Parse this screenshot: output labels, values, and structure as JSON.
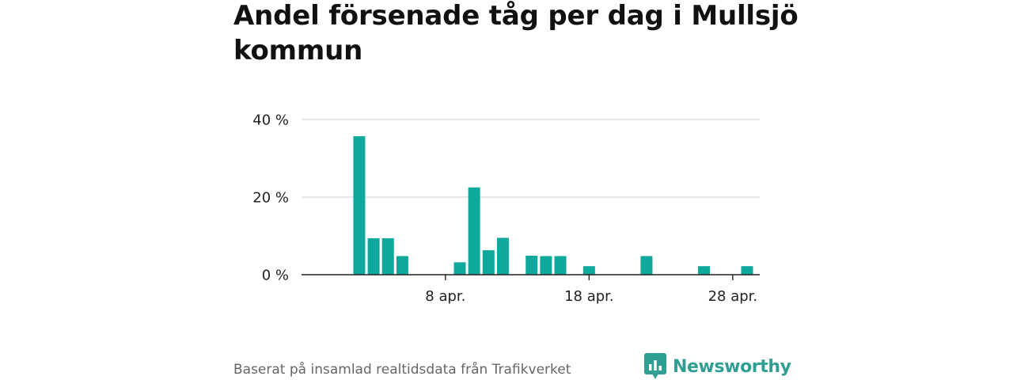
{
  "title": "Andel försenade tåg per dag i Mullsjö kommun",
  "source": "Baserat på insamlad realtidsdata från Trafikverket",
  "brand": {
    "name": "Newsworthy",
    "color": "#2f9f94"
  },
  "chart_data": {
    "type": "bar",
    "title": "Andel försenade tåg per dag i Mullsjö kommun",
    "xlabel": "",
    "ylabel": "",
    "color": "#0fa89d",
    "categories": [
      "30 mar.",
      "31 mar.",
      "1 apr.",
      "2 apr.",
      "3 apr.",
      "4 apr.",
      "5 apr.",
      "6 apr.",
      "7 apr.",
      "8 apr.",
      "9 apr.",
      "10 apr.",
      "11 apr.",
      "12 apr.",
      "13 apr.",
      "14 apr.",
      "15 apr.",
      "16 apr.",
      "17 apr.",
      "18 apr.",
      "19 apr.",
      "20 apr.",
      "21 apr.",
      "22 apr.",
      "23 apr.",
      "24 apr.",
      "25 apr.",
      "26 apr.",
      "27 apr.",
      "28 apr.",
      "29 apr.",
      "30 apr."
    ],
    "values": [
      0,
      0,
      0,
      35.7,
      9.4,
      9.4,
      4.8,
      0,
      0,
      0,
      3.2,
      22.5,
      6.3,
      9.5,
      0,
      4.9,
      4.8,
      4.8,
      0,
      2.2,
      0,
      0,
      0,
      4.8,
      0,
      0,
      0,
      2.2,
      0,
      0,
      2.2,
      0
    ],
    "ylim": [
      0,
      40
    ],
    "yticks": [
      0,
      20,
      40
    ],
    "ytick_labels": [
      "0 %",
      "20 %",
      "40 %"
    ],
    "xticks": [
      "8 apr.",
      "18 apr.",
      "28 apr."
    ],
    "grid": true
  }
}
